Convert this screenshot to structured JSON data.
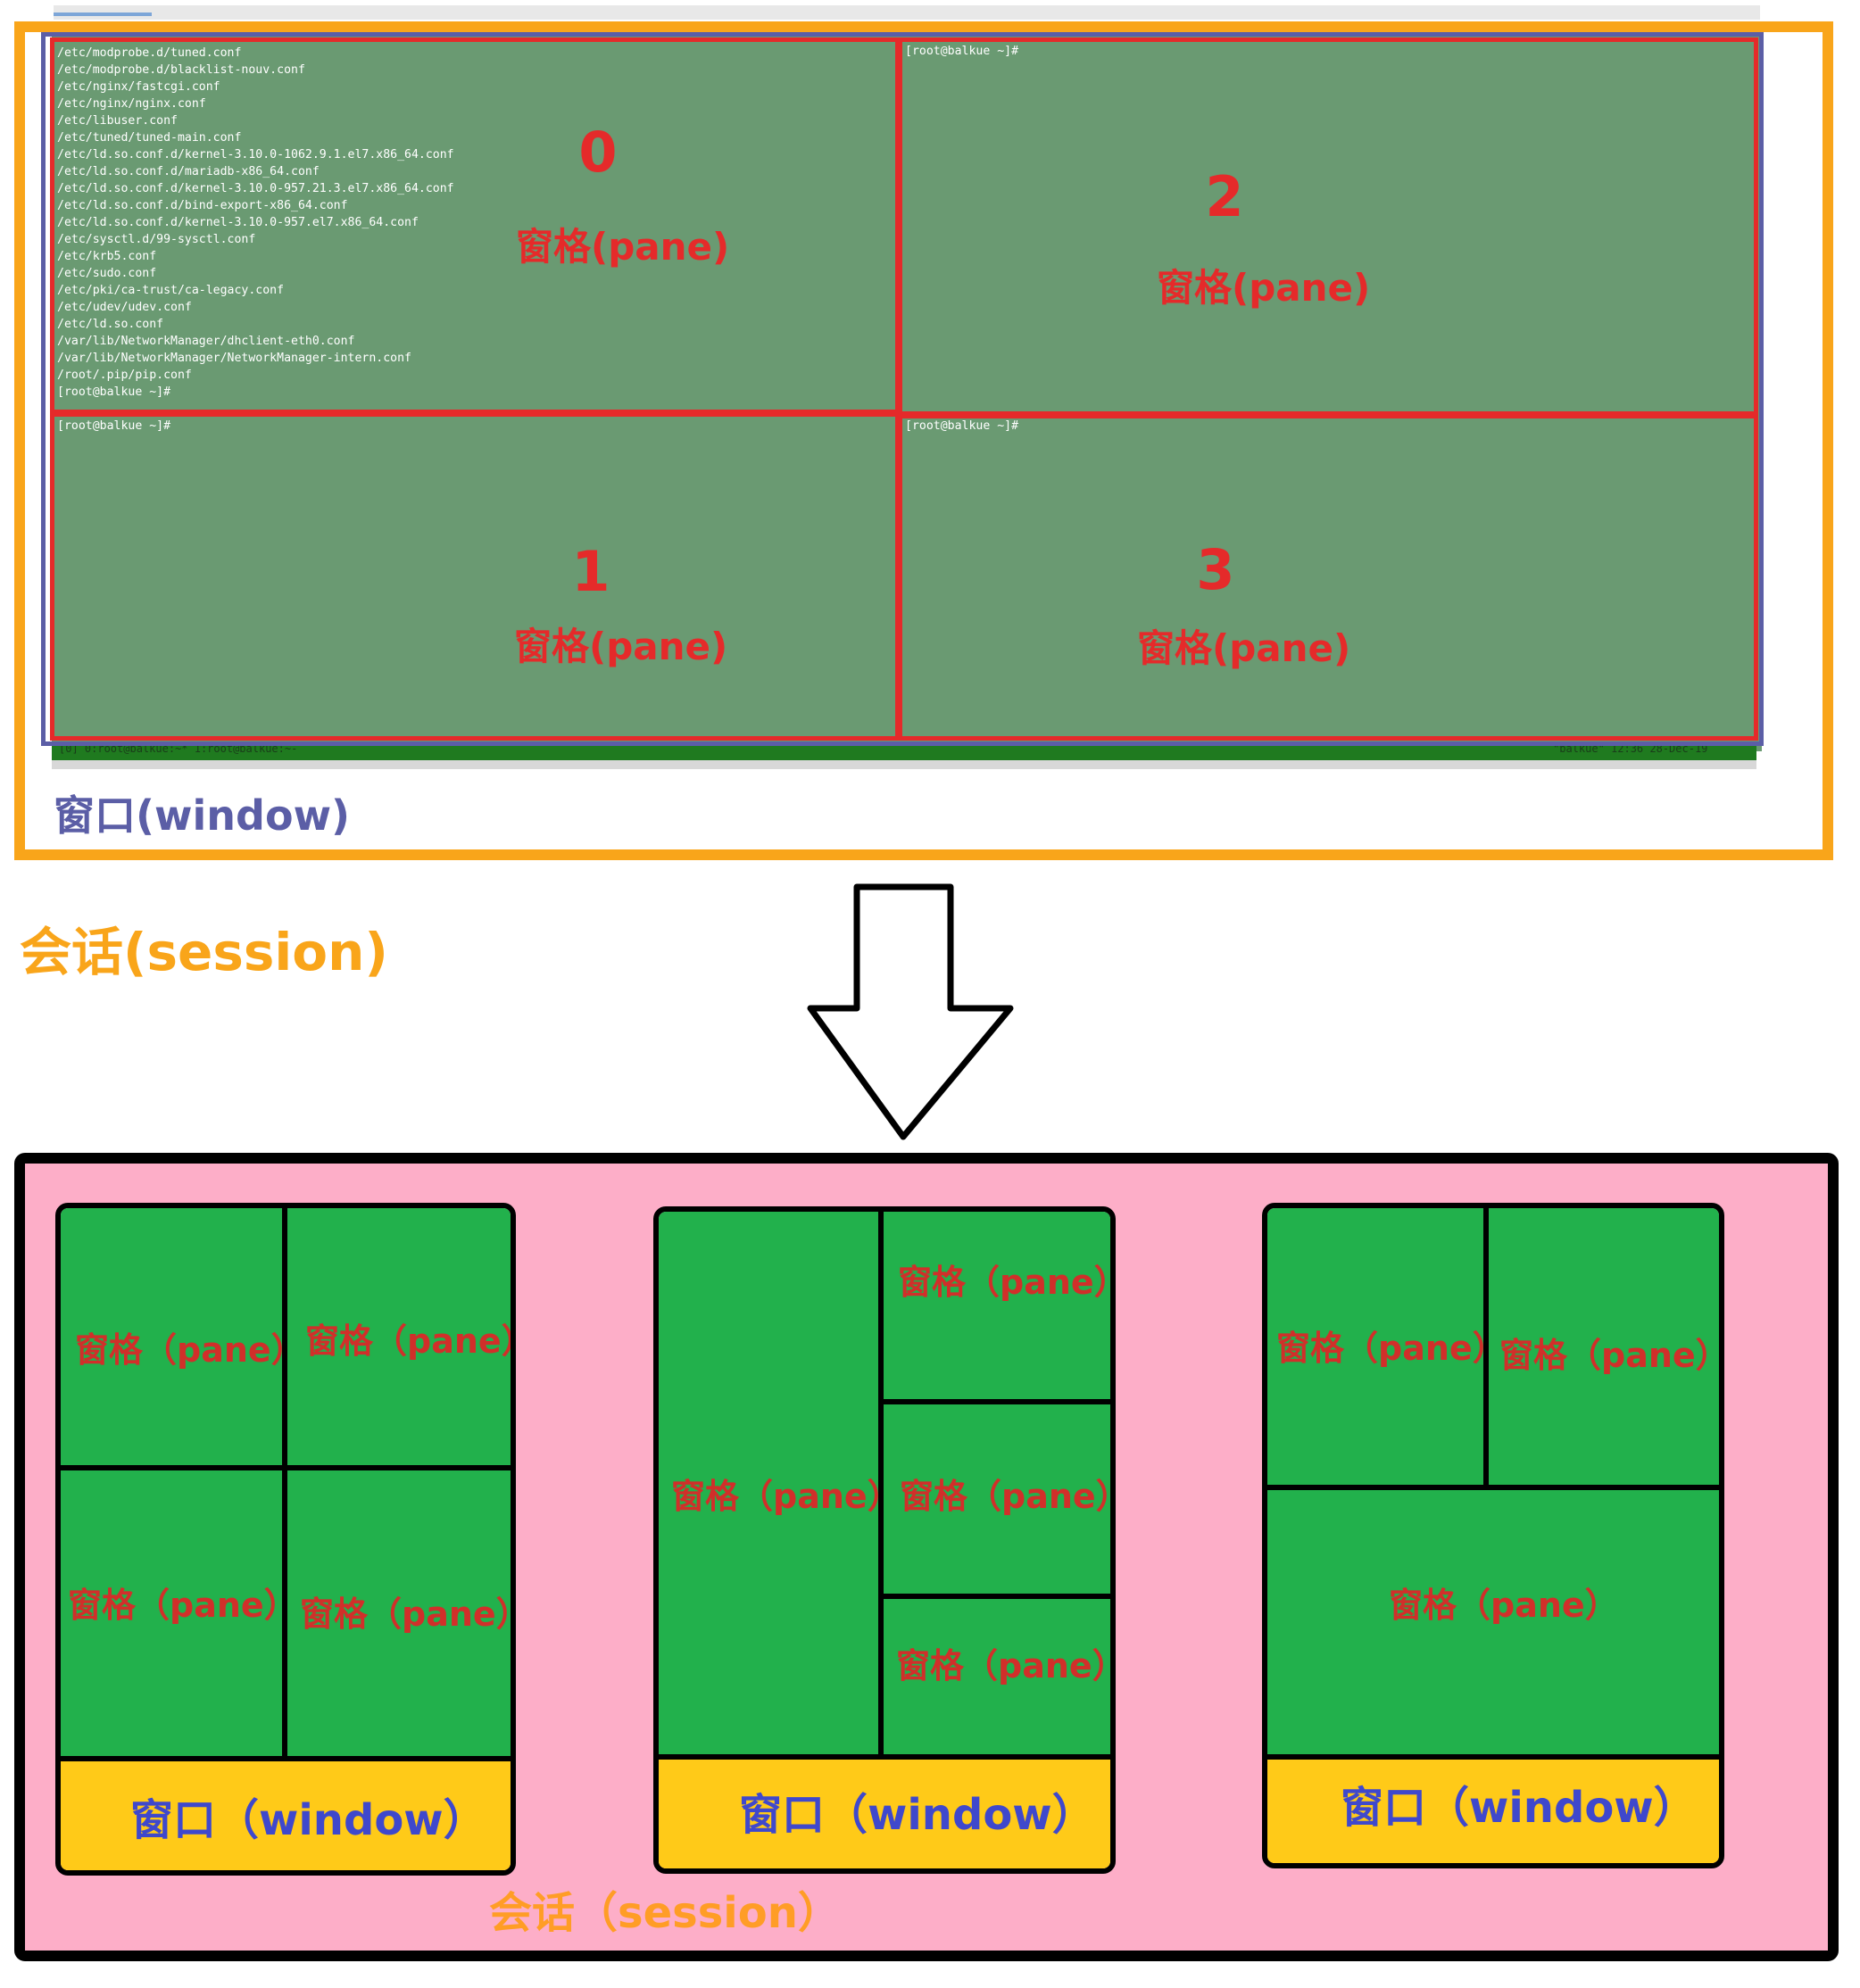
{
  "terminal": {
    "pane0_lines": [
      "/etc/modprobe.d/tuned.conf",
      "/etc/modprobe.d/blacklist-nouv.conf",
      "/etc/nginx/fastcgi.conf",
      "/etc/nginx/nginx.conf",
      "/etc/libuser.conf",
      "/etc/tuned/tuned-main.conf",
      "/etc/ld.so.conf.d/kernel-3.10.0-1062.9.1.el7.x86_64.conf",
      "/etc/ld.so.conf.d/mariadb-x86_64.conf",
      "/etc/ld.so.conf.d/kernel-3.10.0-957.21.3.el7.x86_64.conf",
      "/etc/ld.so.conf.d/bind-export-x86_64.conf",
      "/etc/ld.so.conf.d/kernel-3.10.0-957.el7.x86_64.conf",
      "/etc/sysctl.d/99-sysctl.conf",
      "/etc/krb5.conf",
      "/etc/sudo.conf",
      "/etc/pki/ca-trust/ca-legacy.conf",
      "/etc/udev/udev.conf",
      "/etc/ld.so.conf",
      "/var/lib/NetworkManager/dhclient-eth0.conf",
      "/var/lib/NetworkManager/NetworkManager-intern.conf",
      "/root/.pip/pip.conf",
      "[root@balkue ~]#"
    ],
    "pane1_prompt": "[root@balkue ~]#",
    "pane2_prompt": "[root@balkue ~]#",
    "pane3_prompt": "[root@balkue ~]#",
    "status_left": "[0] 0:root@balkue:~* 1:root@balkue:~-",
    "status_right": "\"balkue\" 12:36 28-Dec-19"
  },
  "top_labels": {
    "pane0_number": "0",
    "pane1_number": "1",
    "pane2_number": "2",
    "pane3_number": "3",
    "pane_word": "窗格(pane)",
    "window": "窗口(window)",
    "session": "会话(session)"
  },
  "bottom_labels": {
    "pane": "窗格（pane）",
    "window": "窗口（window）",
    "session": "会话（session）"
  },
  "colors": {
    "session_border": "#f9a51a",
    "window_border": "#5b5ea6",
    "pane_border": "#e52a2a",
    "terminal_bg": "#6a9a72",
    "session_box_bg": "#fdaec8",
    "pane_fill": "#22b14c",
    "window_bar_fill": "#ffca18"
  }
}
